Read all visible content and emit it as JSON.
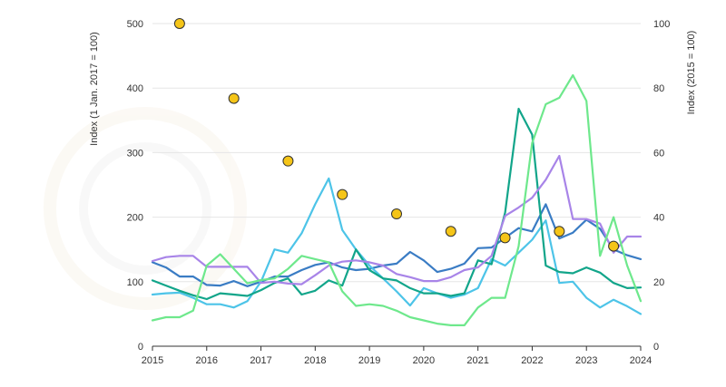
{
  "chart_data": {
    "type": "line",
    "ylabel_left": "Index (1 Jan. 2017 = 100)",
    "ylabel_right": "Index (2015 = 100)",
    "xlim": [
      2015,
      2024
    ],
    "ylim_left": [
      0,
      500
    ],
    "ylim_right": [
      0,
      100
    ],
    "x_ticks": [
      "2015",
      "2016",
      "2017",
      "2018",
      "2019",
      "2020",
      "2021",
      "2022",
      "2023",
      "2024"
    ],
    "y_ticks_left": [
      "0",
      "100",
      "200",
      "300",
      "400",
      "500"
    ],
    "y_ticks_right": [
      "0",
      "20",
      "40",
      "60",
      "80",
      "100"
    ],
    "grid": true,
    "legend": "none",
    "x": [
      2015.0,
      2015.25,
      2015.5,
      2015.75,
      2016.0,
      2016.25,
      2016.5,
      2016.75,
      2017.0,
      2017.25,
      2017.5,
      2017.75,
      2018.0,
      2018.25,
      2018.5,
      2018.75,
      2019.0,
      2019.25,
      2019.5,
      2019.75,
      2020.0,
      2020.25,
      2020.5,
      2020.75,
      2021.0,
      2021.25,
      2021.5,
      2021.75,
      2022.0,
      2022.25,
      2022.5,
      2022.75,
      2023.0,
      2023.25,
      2023.5,
      2023.75,
      2024.0
    ],
    "series": [
      {
        "axis": "left",
        "color": "#3a7cc4",
        "values": [
          130,
          122,
          108,
          108,
          95,
          94,
          101,
          93,
          100,
          108,
          108,
          118,
          126,
          130,
          122,
          118,
          120,
          125,
          128,
          146,
          133,
          115,
          120,
          128,
          152,
          153,
          168,
          183,
          178,
          220,
          167,
          176,
          196,
          182,
          150,
          141,
          135
        ]
      },
      {
        "axis": "left",
        "color": "#4dc4e8",
        "values": [
          80,
          82,
          83,
          75,
          65,
          65,
          60,
          70,
          100,
          150,
          145,
          175,
          220,
          260,
          180,
          150,
          125,
          105,
          85,
          63,
          90,
          82,
          75,
          80,
          90,
          135,
          125,
          145,
          165,
          195,
          98,
          100,
          75,
          60,
          72,
          62,
          50
        ]
      },
      {
        "axis": "left",
        "color": "#12a58a",
        "values": [
          102,
          94,
          86,
          79,
          73,
          82,
          80,
          78,
          87,
          98,
          105,
          80,
          86,
          102,
          94,
          150,
          118,
          105,
          102,
          90,
          82,
          82,
          78,
          82,
          133,
          127,
          207,
          368,
          328,
          125,
          115,
          113,
          122,
          114,
          98,
          90,
          91
        ]
      },
      {
        "axis": "left",
        "color": "#a884e8",
        "values": [
          132,
          138,
          140,
          140,
          123,
          123,
          123,
          123,
          98,
          100,
          97,
          96,
          110,
          125,
          131,
          133,
          130,
          125,
          112,
          107,
          101,
          101,
          107,
          118,
          122,
          140,
          202,
          215,
          230,
          258,
          295,
          197,
          197,
          190,
          145,
          170,
          170
        ]
      },
      {
        "axis": "right",
        "color": "#6ee88c",
        "values": [
          8,
          9,
          9,
          11,
          25,
          28.5,
          24,
          19.5,
          20.5,
          21,
          24,
          28,
          27,
          26,
          17,
          12.5,
          13,
          12.5,
          11,
          9,
          8,
          7,
          6.5,
          6.5,
          12,
          15,
          15,
          31,
          63,
          75,
          77,
          84,
          76,
          28,
          40,
          25,
          14
        ]
      }
    ],
    "markers": {
      "axis": "left",
      "color": "#f5c518",
      "x": [
        2015.5,
        2016.5,
        2017.5,
        2018.5,
        2019.5,
        2020.5,
        2021.5,
        2022.5,
        2023.5
      ],
      "y": [
        500,
        384,
        287,
        235,
        205,
        178,
        168,
        178,
        155
      ]
    }
  }
}
